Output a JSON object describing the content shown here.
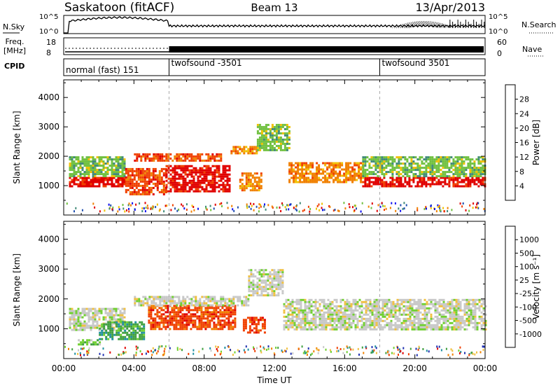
{
  "header": {
    "station": "Saskatoon (fitACF)",
    "beam": "Beam 13",
    "date": "13/Apr/2013"
  },
  "strip1": {
    "left_label": "N.Sky",
    "left_ticks": [
      "10^5",
      "10^0"
    ],
    "right_ticks": [
      "10^5",
      "10^0"
    ],
    "right_label": "N.Search"
  },
  "strip2": {
    "left_label_line1": "Freq.",
    "left_label_line2": "[MHz]",
    "left_ticks": [
      "18",
      "8"
    ],
    "right_ticks": [
      "60",
      "0"
    ],
    "right_label": "Nave"
  },
  "cpid": {
    "label": "CPID",
    "segments": [
      {
        "text": "normal (fast) 151",
        "start_hour": 0
      },
      {
        "text": "twofsound -3501",
        "start_hour": 6
      },
      {
        "text": "twofsound 3501",
        "start_hour": 18
      }
    ]
  },
  "chart_data": [
    {
      "type": "heatmap",
      "name": "power-panel",
      "ylabel": "Slant Range [km]",
      "ylim": [
        0,
        4600
      ],
      "y_ticks": [
        1000,
        2000,
        3000,
        4000
      ],
      "xlim": [
        0,
        24
      ],
      "colorbar": {
        "label": "Power [dB]",
        "ticks": [
          "4",
          "8",
          "12",
          "16",
          "20",
          "24",
          "28"
        ],
        "colors": [
          "#1010f0",
          "#2050b0",
          "#408a78",
          "#70c040",
          "#f0c000",
          "#f08000",
          "#f04000",
          "#e00000"
        ]
      },
      "bands": [
        {
          "x": [
            0.3,
            3.5
          ],
          "y": [
            950,
            1300
          ],
          "level": 28
        },
        {
          "x": [
            0.3,
            3.5
          ],
          "y": [
            1300,
            2000
          ],
          "level": 12
        },
        {
          "x": [
            3.5,
            5.8
          ],
          "y": [
            700,
            1600
          ],
          "level": 24
        },
        {
          "x": [
            4.0,
            9.0
          ],
          "y": [
            1850,
            2100
          ],
          "level": 24
        },
        {
          "x": [
            5.8,
            9.5
          ],
          "y": [
            800,
            1700
          ],
          "level": 28
        },
        {
          "x": [
            9.5,
            11.0
          ],
          "y": [
            2100,
            2350
          ],
          "level": 20
        },
        {
          "x": [
            10.0,
            11.2
          ],
          "y": [
            850,
            1450
          ],
          "level": 20
        },
        {
          "x": [
            11.0,
            12.8
          ],
          "y": [
            2200,
            3100
          ],
          "level": 12
        },
        {
          "x": [
            12.8,
            17.0
          ],
          "y": [
            1150,
            1800
          ],
          "level": 20
        },
        {
          "x": [
            17.0,
            24.0
          ],
          "y": [
            1000,
            1300
          ],
          "level": 28
        },
        {
          "x": [
            17.0,
            24.0
          ],
          "y": [
            1300,
            2000
          ],
          "level": 12
        }
      ]
    },
    {
      "type": "heatmap",
      "name": "velocity-panel",
      "ylabel": "Slant Range [km]",
      "ylim": [
        0,
        4600
      ],
      "y_ticks": [
        1000,
        2000,
        3000,
        4000
      ],
      "xlim": [
        0,
        24
      ],
      "xlabel": "Time UT",
      "x_ticks": [
        "00:00",
        "04:00",
        "08:00",
        "12:00",
        "16:00",
        "20:00",
        "00:00"
      ],
      "colorbar": {
        "label": "Velocity [m s⁻¹]",
        "ticks": [
          "1000",
          "500",
          "100",
          "25",
          "-25",
          "-100",
          "-500",
          "-1000"
        ],
        "colors": [
          "#2030b0",
          "#2090a0",
          "#40a040",
          "#70d030",
          "#c8c8c8",
          "#f0c040",
          "#f08000",
          "#f04000",
          "#e00000"
        ]
      },
      "bands": [
        {
          "x": [
            0.3,
            3.5
          ],
          "y": [
            950,
            1700
          ],
          "level": 0
        },
        {
          "x": [
            2.0,
            4.6
          ],
          "y": [
            650,
            1250
          ],
          "level": 100
        },
        {
          "x": [
            4.8,
            9.8
          ],
          "y": [
            1000,
            1800
          ],
          "level": -500
        },
        {
          "x": [
            4.0,
            10.5
          ],
          "y": [
            1800,
            2100
          ],
          "level": 0
        },
        {
          "x": [
            10.2,
            11.5
          ],
          "y": [
            850,
            1400
          ],
          "level": -500
        },
        {
          "x": [
            10.5,
            12.5
          ],
          "y": [
            2100,
            3000
          ],
          "level": 0
        },
        {
          "x": [
            12.5,
            24.0
          ],
          "y": [
            1000,
            2000
          ],
          "level": 0
        },
        {
          "x": [
            0.8,
            2.0
          ],
          "y": [
            450,
            650
          ],
          "level": 25
        }
      ]
    }
  ]
}
